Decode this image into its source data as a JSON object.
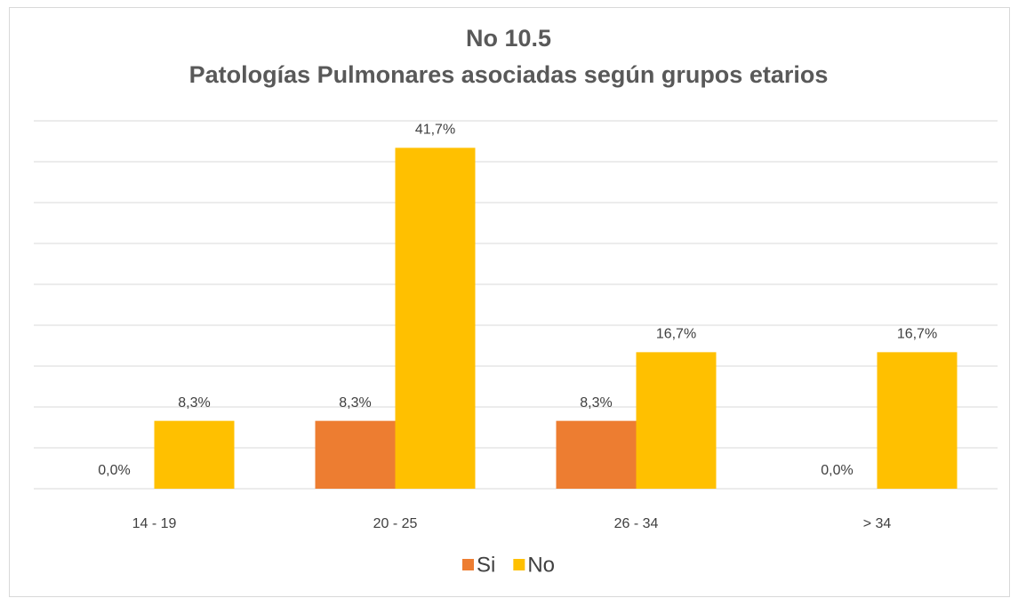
{
  "chart_data": {
    "type": "bar",
    "title": [
      "No 10.5",
      "Patologías Pulmonares asociadas según grupos etarios"
    ],
    "categories": [
      "14 - 19",
      "20 - 25",
      "26 - 34",
      "> 34"
    ],
    "series": [
      {
        "name": "Si",
        "color": "#ED7D31",
        "values": [
          0,
          8.3,
          8.3,
          0
        ],
        "value_labels": [
          "0,0%",
          "8,3%",
          "8,3%",
          "0,0%"
        ]
      },
      {
        "name": "No",
        "color": "#FFC000",
        "values": [
          8.3,
          41.7,
          16.7,
          16.7
        ],
        "value_labels": [
          "8,3%",
          "41,7%",
          "16,7%",
          "16,7%"
        ]
      }
    ],
    "ylim": [
      0,
      45
    ],
    "yticks": [
      0,
      5,
      10,
      15,
      20,
      25,
      30,
      35,
      40,
      45
    ],
    "grid": true,
    "legend": "bottom"
  }
}
